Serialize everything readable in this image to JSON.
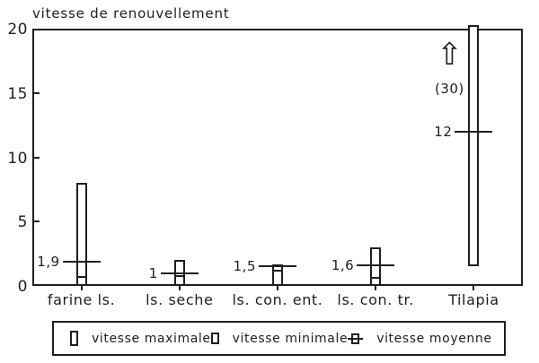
{
  "title": "vitesse de renouvellement",
  "colors": {
    "ink": "#1e1e1e",
    "background": "#ffffff"
  },
  "chart_data": {
    "type": "bar",
    "variant": "min-max-mean range bars, hollow white bars with black outline",
    "title": "vitesse de renouvellement",
    "categories": [
      "farine ls.",
      "ls. seche",
      "ls. con. ent.",
      "ls. con. tr.",
      "Tilapia"
    ],
    "series": [
      {
        "name": "vitesse maximale",
        "values": [
          8,
          2,
          1.7,
          3,
          30
        ]
      },
      {
        "name": "vitesse minimale",
        "values": [
          0.7,
          0.8,
          1.2,
          0.6,
          1.5
        ]
      },
      {
        "name": "vitesse moyenne",
        "values": [
          1.9,
          1,
          1.5,
          1.6,
          12
        ]
      }
    ],
    "mean_labels": [
      "1,9",
      "1",
      "1,5",
      "1,6",
      "12"
    ],
    "ylim": [
      0,
      20
    ],
    "yticks": [
      0,
      5,
      10,
      15,
      20
    ],
    "xlabel": "",
    "ylabel": "",
    "grid": false,
    "legend_position": "bottom",
    "annotation": {
      "category": "Tilapia",
      "text": "(30)",
      "arrow_glyph": "⇧",
      "meaning": "maximum value off scale"
    }
  },
  "legend": {
    "items": [
      {
        "label": "vitesse maximale",
        "icon": "max-bar-icon"
      },
      {
        "label": "vitesse minimale",
        "icon": "min-bar-icon"
      },
      {
        "label": "vitesse moyenne",
        "icon": "mean-marker-icon"
      }
    ]
  }
}
